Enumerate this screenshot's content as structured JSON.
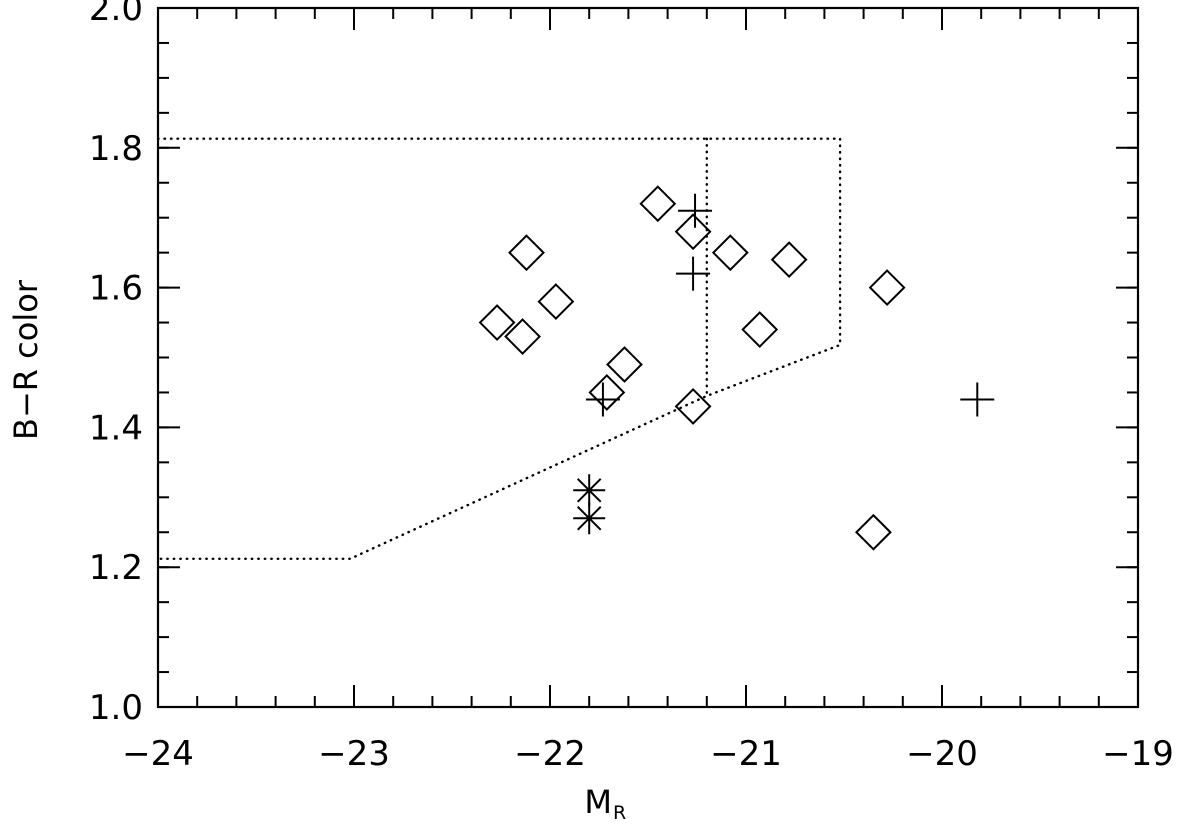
{
  "chart_data": {
    "type": "scatter",
    "title": "",
    "xlabel_main": "M",
    "xlabel_sub": "R",
    "ylabel": "B−R color",
    "xlim": [
      -24,
      -19
    ],
    "ylim": [
      1.0,
      2.0
    ],
    "x_major_ticks": [
      -24,
      -23,
      -22,
      -21,
      -20,
      -19
    ],
    "x_tick_labels": [
      "−24",
      "−23",
      "−22",
      "−21",
      "−20",
      "−19"
    ],
    "y_major_ticks": [
      1.0,
      1.2,
      1.4,
      1.6,
      1.8,
      2.0
    ],
    "y_tick_labels": [
      "1.0",
      "1.2",
      "1.4",
      "1.6",
      "1.8",
      "2.0"
    ],
    "x_minor_step": 0.2,
    "y_minor_step": 0.05,
    "grid": false,
    "series": [
      {
        "marker": "diamond",
        "points": [
          {
            "x": -22.27,
            "y": 1.55
          },
          {
            "x": -22.12,
            "y": 1.65
          },
          {
            "x": -22.14,
            "y": 1.53
          },
          {
            "x": -21.97,
            "y": 1.58
          },
          {
            "x": -21.62,
            "y": 1.49
          },
          {
            "x": -21.71,
            "y": 1.45
          },
          {
            "x": -21.45,
            "y": 1.72
          },
          {
            "x": -21.27,
            "y": 1.68
          },
          {
            "x": -21.27,
            "y": 1.43
          },
          {
            "x": -21.08,
            "y": 1.65
          },
          {
            "x": -20.93,
            "y": 1.54
          },
          {
            "x": -20.78,
            "y": 1.64
          },
          {
            "x": -20.28,
            "y": 1.6
          },
          {
            "x": -20.35,
            "y": 1.25
          }
        ]
      },
      {
        "marker": "plus",
        "points": [
          {
            "x": -21.26,
            "y": 1.71
          },
          {
            "x": -21.27,
            "y": 1.62
          },
          {
            "x": -21.73,
            "y": 1.44
          },
          {
            "x": -19.82,
            "y": 1.44
          }
        ]
      },
      {
        "marker": "asterisk",
        "points": [
          {
            "x": -21.8,
            "y": 1.31
          },
          {
            "x": -21.8,
            "y": 1.27
          }
        ]
      }
    ],
    "boundaries": [
      {
        "style": "dotted",
        "points": [
          [
            -24,
            1.813
          ],
          [
            -20.52,
            1.813
          ],
          [
            -20.52,
            1.518
          ],
          [
            -21.2,
            1.445
          ],
          [
            -23.02,
            1.212
          ],
          [
            -24,
            1.212
          ]
        ]
      },
      {
        "style": "dotted",
        "points": [
          [
            -21.2,
            1.813
          ],
          [
            -21.2,
            1.445
          ]
        ]
      }
    ],
    "colors": {
      "ink": "#000000",
      "background": "#ffffff"
    }
  }
}
